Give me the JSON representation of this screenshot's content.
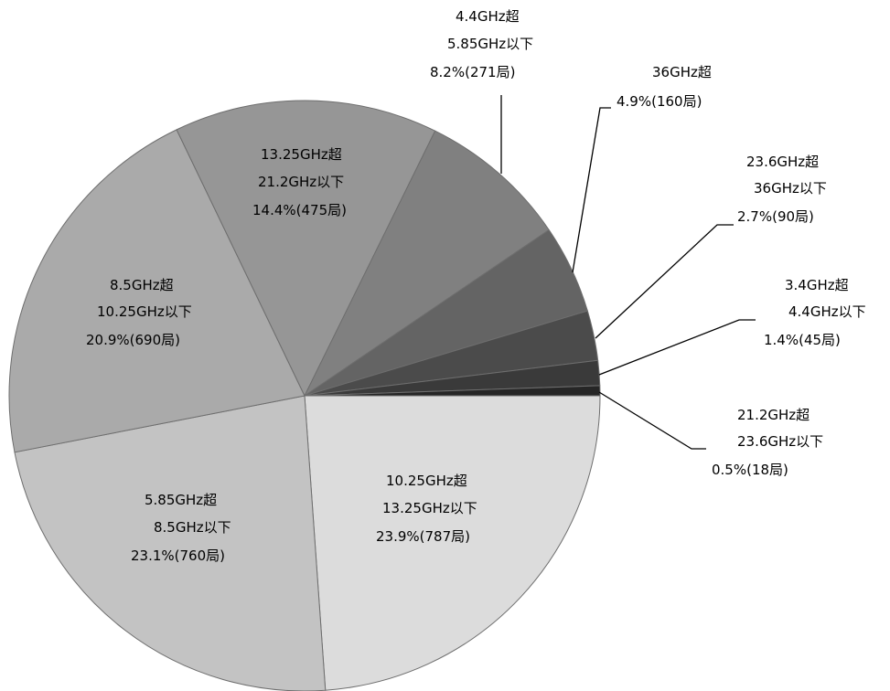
{
  "chart_data": {
    "type": "pie",
    "start": "east, clockwise",
    "slices": [
      {
        "range": "10.25GHz超",
        "range2": "13.25GHz以下",
        "pct": 23.9,
        "count": 787,
        "value_label": "23.9%(787局)",
        "color": "#dcdcdc"
      },
      {
        "range": "5.85GHz超",
        "range2": "8.5GHz以下",
        "pct": 23.1,
        "count": 760,
        "value_label": "23.1%(760局)",
        "color": "#c3c3c3"
      },
      {
        "range": "8.5GHz超",
        "range2": "10.25GHz以下",
        "pct": 20.9,
        "count": 690,
        "value_label": "20.9%(690局)",
        "color": "#aaaaaa"
      },
      {
        "range": "13.25GHz超",
        "range2": "21.2GHz以下",
        "pct": 14.4,
        "count": 475,
        "value_label": "14.4%(475局)",
        "color": "#969696"
      },
      {
        "range": "4.4GHz超",
        "range2": "5.85GHz以下",
        "pct": 8.2,
        "count": 271,
        "value_label": "8.2%(271局)",
        "color": "#808080"
      },
      {
        "range": "36GHz超",
        "range2": "",
        "pct": 4.9,
        "count": 160,
        "value_label": "4.9%(160局)",
        "color": "#646464"
      },
      {
        "range": "23.6GHz超",
        "range2": "36GHz以下",
        "pct": 2.7,
        "count": 90,
        "value_label": "2.7%(90局)",
        "color": "#4b4b4b"
      },
      {
        "range": "3.4GHz超",
        "range2": "4.4GHz以下",
        "pct": 1.4,
        "count": 45,
        "value_label": "1.4%(45局)",
        "color": "#3a3a3a"
      },
      {
        "range": "21.2GHz超",
        "range2": "23.6GHz以下",
        "pct": 0.5,
        "count": 18,
        "value_label": "0.5%(18局)",
        "color": "#262626"
      }
    ]
  }
}
